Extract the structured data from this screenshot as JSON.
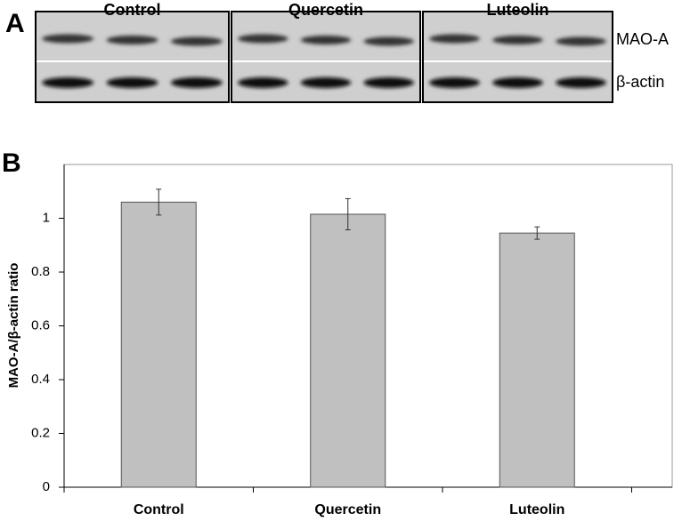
{
  "panel_a": {
    "label": "A",
    "groups": [
      "Control",
      "Quercetin",
      "Luteolin"
    ],
    "rows": [
      "MAO-A",
      "β-actin"
    ]
  },
  "chart_data": {
    "type": "bar",
    "panel_label": "B",
    "y_label": "MAO-A/β-actin ratio",
    "categories": [
      "Control",
      "Quercetin",
      "Luteolin"
    ],
    "values": [
      1.06,
      1.015,
      0.945
    ],
    "errors": [
      0.048,
      0.058,
      0.023
    ],
    "color": "#c0c0c0",
    "ylim": [
      0,
      1.2
    ],
    "yticks": [
      0,
      0.2,
      0.4,
      0.6,
      0.8,
      1
    ],
    "grid": false
  }
}
